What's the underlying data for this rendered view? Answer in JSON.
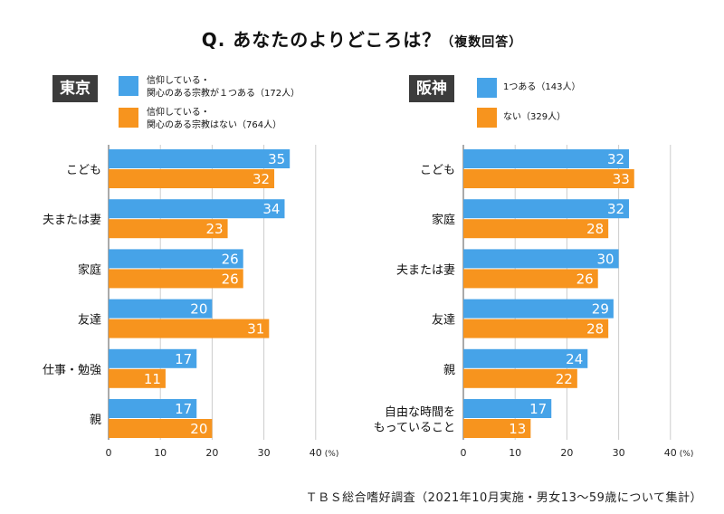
{
  "title": "Q. あなたのよりどころは？",
  "subtitle": "（複数回答）",
  "footer": "ＴＢＳ総合嗜好調査（2021年10月実施・男女13〜59歳について集計）",
  "colors": {
    "blue": "#46a3e8",
    "orange": "#f7941e",
    "grid": "#cccccc",
    "axis": "#555555"
  },
  "chart_data": [
    {
      "type": "bar",
      "region": "東京",
      "legend": [
        {
          "name": "信仰している・\n関心のある宗教が１つある（172人）",
          "color": "#46a3e8"
        },
        {
          "name": "信仰している・\n関心のある宗教はない（764人）",
          "color": "#f7941e"
        }
      ],
      "categories": [
        "こども",
        "夫または妻",
        "家庭",
        "友達",
        "仕事・勉強",
        "親"
      ],
      "series": [
        {
          "values": [
            35,
            34,
            26,
            20,
            17,
            17
          ]
        },
        {
          "values": [
            32,
            23,
            26,
            31,
            11,
            20
          ]
        }
      ],
      "xlim": [
        0,
        40
      ],
      "ticks": [
        "0",
        "10",
        "20",
        "30",
        "40"
      ],
      "unit": "(%)"
    },
    {
      "type": "bar",
      "region": "阪神",
      "legend": [
        {
          "name": "1つある（143人）",
          "color": "#46a3e8"
        },
        {
          "name": "ない（329人）",
          "color": "#f7941e"
        }
      ],
      "categories": [
        "こども",
        "家庭",
        "夫または妻",
        "友達",
        "親",
        "自由な時間を\nもっていること"
      ],
      "series": [
        {
          "values": [
            32,
            32,
            30,
            29,
            24,
            17
          ]
        },
        {
          "values": [
            33,
            28,
            26,
            28,
            22,
            13
          ]
        }
      ],
      "xlim": [
        0,
        40
      ],
      "ticks": [
        "0",
        "10",
        "20",
        "30",
        "40"
      ],
      "unit": "(%)"
    }
  ]
}
